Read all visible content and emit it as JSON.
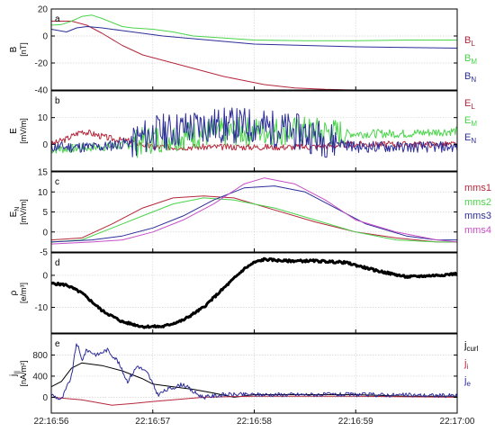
{
  "colors": {
    "red": "#b5283c",
    "green": "#4bd44b",
    "blue": "#2d2d99",
    "magenta": "#c64fc6",
    "black": "#000000",
    "grid": "#d4d4d4"
  },
  "x_axis": {
    "range_seconds": [
      0,
      4
    ],
    "ticks": [
      {
        "t": 0,
        "label": "22:16:56"
      },
      {
        "t": 1,
        "label": "22:16:57"
      },
      {
        "t": 2,
        "label": "22:16:58"
      },
      {
        "t": 3,
        "label": "22:16:59"
      },
      {
        "t": 4,
        "label": "22:17:00"
      }
    ]
  },
  "chart_data": [
    {
      "type": "line",
      "panel_letter": "a",
      "ylabel_lines": [
        "B",
        "[nT]"
      ],
      "ylim": [
        -40,
        20
      ],
      "yticks": [
        20,
        0,
        -20,
        -40
      ],
      "grid": true,
      "legend_position": "right",
      "series": [
        {
          "name": "B",
          "sub": "L",
          "color": "red",
          "points": [
            [
              0,
              11
            ],
            [
              0.2,
              11
            ],
            [
              0.35,
              8
            ],
            [
              0.5,
              2
            ],
            [
              0.7,
              -7
            ],
            [
              0.9,
              -14
            ],
            [
              1.1,
              -18
            ],
            [
              1.3,
              -22
            ],
            [
              1.5,
              -26
            ],
            [
              1.7,
              -30
            ],
            [
              1.9,
              -33
            ],
            [
              2.1,
              -36
            ],
            [
              2.4,
              -38.5
            ],
            [
              2.7,
              -39.5
            ],
            [
              3,
              -40
            ],
            [
              3.5,
              -40
            ],
            [
              4,
              -40
            ]
          ]
        },
        {
          "name": "B",
          "sub": "M",
          "color": "green",
          "points": [
            [
              0,
              8
            ],
            [
              0.1,
              8.5
            ],
            [
              0.2,
              11
            ],
            [
              0.3,
              14.5
            ],
            [
              0.4,
              15.5
            ],
            [
              0.5,
              13
            ],
            [
              0.6,
              10
            ],
            [
              0.7,
              7
            ],
            [
              0.8,
              6
            ],
            [
              1,
              5
            ],
            [
              1.2,
              3
            ],
            [
              1.4,
              0
            ],
            [
              1.6,
              -1
            ],
            [
              1.8,
              -2
            ],
            [
              2,
              -3
            ],
            [
              2.5,
              -3.5
            ],
            [
              3,
              -3.5
            ],
            [
              3.5,
              -3
            ],
            [
              4,
              -3
            ]
          ]
        },
        {
          "name": "B",
          "sub": "N",
          "color": "blue",
          "points": [
            [
              0,
              5
            ],
            [
              0.15,
              3
            ],
            [
              0.25,
              6
            ],
            [
              0.35,
              7
            ],
            [
              0.5,
              6
            ],
            [
              0.7,
              4
            ],
            [
              0.9,
              2
            ],
            [
              1.1,
              0
            ],
            [
              1.4,
              -2
            ],
            [
              1.7,
              -4
            ],
            [
              2,
              -6
            ],
            [
              2.5,
              -7
            ],
            [
              3,
              -8
            ],
            [
              3.5,
              -8.5
            ],
            [
              4,
              -9
            ]
          ]
        }
      ]
    },
    {
      "type": "line",
      "panel_letter": "b",
      "ylabel_lines": [
        "E",
        "[mV/m]"
      ],
      "ylim": [
        -10,
        20
      ],
      "yticks": [
        10,
        0
      ],
      "grid": true,
      "legend_position": "right",
      "series": [
        {
          "name": "E",
          "sub": "L",
          "color": "red",
          "noise": 1.2,
          "seed": 3,
          "points": [
            [
              0,
              0
            ],
            [
              0.15,
              2
            ],
            [
              0.3,
              5
            ],
            [
              0.4,
              4
            ],
            [
              0.6,
              2
            ],
            [
              0.8,
              1
            ],
            [
              1,
              -1
            ],
            [
              1.5,
              -1
            ],
            [
              2,
              -1
            ],
            [
              2.5,
              -1
            ],
            [
              3,
              0
            ],
            [
              3.5,
              0
            ],
            [
              4,
              0
            ]
          ]
        },
        {
          "name": "E",
          "sub": "M",
          "color": "green",
          "noise": 5.5,
          "seed": 7,
          "noise_from": 0.8,
          "noise_to": 2.9,
          "points": [
            [
              0,
              -2
            ],
            [
              0.5,
              -1
            ],
            [
              0.8,
              0
            ],
            [
              1,
              2
            ],
            [
              1.5,
              4
            ],
            [
              2,
              5
            ],
            [
              2.5,
              5
            ],
            [
              2.9,
              4
            ],
            [
              3,
              4
            ],
            [
              3.5,
              4
            ],
            [
              4,
              5
            ]
          ]
        },
        {
          "name": "E",
          "sub": "N",
          "color": "blue",
          "noise": 7,
          "seed": 11,
          "noise_from": 0.8,
          "noise_to": 2.8,
          "points": [
            [
              0,
              -1
            ],
            [
              0.5,
              -1
            ],
            [
              0.8,
              1
            ],
            [
              1,
              4
            ],
            [
              1.5,
              7
            ],
            [
              2,
              7
            ],
            [
              2.5,
              4
            ],
            [
              2.8,
              1
            ],
            [
              3,
              -1
            ],
            [
              3.5,
              -1
            ],
            [
              4,
              -1
            ]
          ]
        }
      ]
    },
    {
      "type": "line",
      "panel_letter": "c",
      "ylabel_lines": [
        "E",
        "[mV/m]"
      ],
      "ylabel_sub": "N",
      "ylim": [
        -5,
        15
      ],
      "yticks": [
        15,
        10,
        5,
        0,
        -5
      ],
      "grid": true,
      "legend_position": "right",
      "series": [
        {
          "name": "mms1",
          "color": "red",
          "points": [
            [
              0,
              -2
            ],
            [
              0.3,
              -1.5
            ],
            [
              0.6,
              2
            ],
            [
              0.9,
              6
            ],
            [
              1.2,
              8.5
            ],
            [
              1.5,
              9
            ],
            [
              1.8,
              8.5
            ],
            [
              2.2,
              5.5
            ],
            [
              2.6,
              2.5
            ],
            [
              3,
              0
            ],
            [
              3.4,
              -1.5
            ],
            [
              3.8,
              -2.5
            ],
            [
              4,
              -2.5
            ]
          ]
        },
        {
          "name": "mms2",
          "color": "green",
          "points": [
            [
              0,
              -2.5
            ],
            [
              0.3,
              -2
            ],
            [
              0.6,
              1
            ],
            [
              0.9,
              4
            ],
            [
              1.2,
              7
            ],
            [
              1.5,
              8.5
            ],
            [
              1.8,
              8
            ],
            [
              2.2,
              6
            ],
            [
              2.6,
              3
            ],
            [
              3,
              0
            ],
            [
              3.4,
              -2
            ],
            [
              3.8,
              -2.5
            ],
            [
              4,
              -2.5
            ]
          ]
        },
        {
          "name": "mms3",
          "color": "blue",
          "points": [
            [
              0,
              -2.5
            ],
            [
              0.4,
              -2
            ],
            [
              0.7,
              -1
            ],
            [
              1,
              1
            ],
            [
              1.3,
              4
            ],
            [
              1.6,
              8
            ],
            [
              1.9,
              11
            ],
            [
              2.2,
              11.5
            ],
            [
              2.5,
              10
            ],
            [
              2.8,
              6
            ],
            [
              3.1,
              2
            ],
            [
              3.5,
              -1
            ],
            [
              3.8,
              -2
            ],
            [
              4,
              -2
            ]
          ]
        },
        {
          "name": "mms4",
          "color": "magenta",
          "points": [
            [
              0,
              -3
            ],
            [
              0.4,
              -2.5
            ],
            [
              0.7,
              -2
            ],
            [
              1,
              0
            ],
            [
              1.3,
              3
            ],
            [
              1.6,
              7
            ],
            [
              1.9,
              12
            ],
            [
              2.1,
              13.5
            ],
            [
              2.4,
              12
            ],
            [
              2.7,
              8
            ],
            [
              3,
              3
            ],
            [
              3.4,
              0
            ],
            [
              3.8,
              -2
            ],
            [
              4,
              -2.5
            ]
          ]
        }
      ]
    },
    {
      "type": "line",
      "panel_letter": "d",
      "ylabel_lines": [
        "ρ",
        "[e/m³]"
      ],
      "ylim": [
        -18,
        7
      ],
      "yticks": [
        0,
        -10
      ],
      "grid": true,
      "series": [
        {
          "color": "black",
          "width": 3,
          "noise": 0.35,
          "seed": 5,
          "points": [
            [
              0,
              -2.5
            ],
            [
              0.15,
              -3
            ],
            [
              0.3,
              -5.5
            ],
            [
              0.5,
              -11
            ],
            [
              0.7,
              -14.5
            ],
            [
              0.9,
              -16
            ],
            [
              1.1,
              -16
            ],
            [
              1.3,
              -14
            ],
            [
              1.5,
              -10
            ],
            [
              1.7,
              -4
            ],
            [
              1.9,
              2
            ],
            [
              2,
              4
            ],
            [
              2.1,
              5
            ],
            [
              2.3,
              4.5
            ],
            [
              2.6,
              4.5
            ],
            [
              2.9,
              4
            ],
            [
              3.2,
              1.5
            ],
            [
              3.5,
              -0.5
            ],
            [
              3.8,
              0
            ],
            [
              4,
              0.5
            ]
          ]
        }
      ]
    },
    {
      "type": "line",
      "panel_letter": "e",
      "ylabel_lines": [
        "j",
        "[nA/m²]"
      ],
      "ylabel_sub": "||",
      "ylim": [
        -300,
        1200
      ],
      "yticks": [
        800,
        400,
        0
      ],
      "grid": true,
      "legend_position": "right",
      "series": [
        {
          "name": "j",
          "sub": "curl",
          "color": "black",
          "points": [
            [
              0,
              200
            ],
            [
              0.1,
              300
            ],
            [
              0.2,
              550
            ],
            [
              0.3,
              650
            ],
            [
              0.5,
              600
            ],
            [
              0.7,
              500
            ],
            [
              0.9,
              350
            ],
            [
              1,
              250
            ],
            [
              1.2,
              200
            ],
            [
              1.4,
              150
            ],
            [
              1.6,
              80
            ],
            [
              1.8,
              0
            ],
            [
              2,
              50
            ],
            [
              2.5,
              50
            ],
            [
              3,
              50
            ],
            [
              3.5,
              20
            ],
            [
              4,
              20
            ]
          ]
        },
        {
          "name": "j",
          "sub": "i",
          "color": "red",
          "points": [
            [
              0,
              0
            ],
            [
              0.3,
              -50
            ],
            [
              0.6,
              -150
            ],
            [
              0.8,
              -120
            ],
            [
              1,
              -80
            ],
            [
              1.2,
              -50
            ],
            [
              1.5,
              0
            ],
            [
              2,
              20
            ],
            [
              3,
              20
            ],
            [
              4,
              0
            ]
          ]
        },
        {
          "name": "j",
          "sub": "e",
          "color": "blue",
          "noise": 40,
          "seed": 9,
          "points": [
            [
              0,
              50
            ],
            [
              0.1,
              -50
            ],
            [
              0.2,
              400
            ],
            [
              0.25,
              1050
            ],
            [
              0.3,
              700
            ],
            [
              0.35,
              900
            ],
            [
              0.45,
              800
            ],
            [
              0.55,
              900
            ],
            [
              0.65,
              700
            ],
            [
              0.75,
              300
            ],
            [
              0.85,
              600
            ],
            [
              0.95,
              450
            ],
            [
              1.05,
              50
            ],
            [
              1.15,
              150
            ],
            [
              1.3,
              250
            ],
            [
              1.4,
              100
            ],
            [
              1.5,
              0
            ],
            [
              1.7,
              50
            ],
            [
              2,
              50
            ],
            [
              2.5,
              50
            ],
            [
              3,
              50
            ],
            [
              3.5,
              40
            ],
            [
              4,
              30
            ]
          ]
        }
      ]
    }
  ]
}
